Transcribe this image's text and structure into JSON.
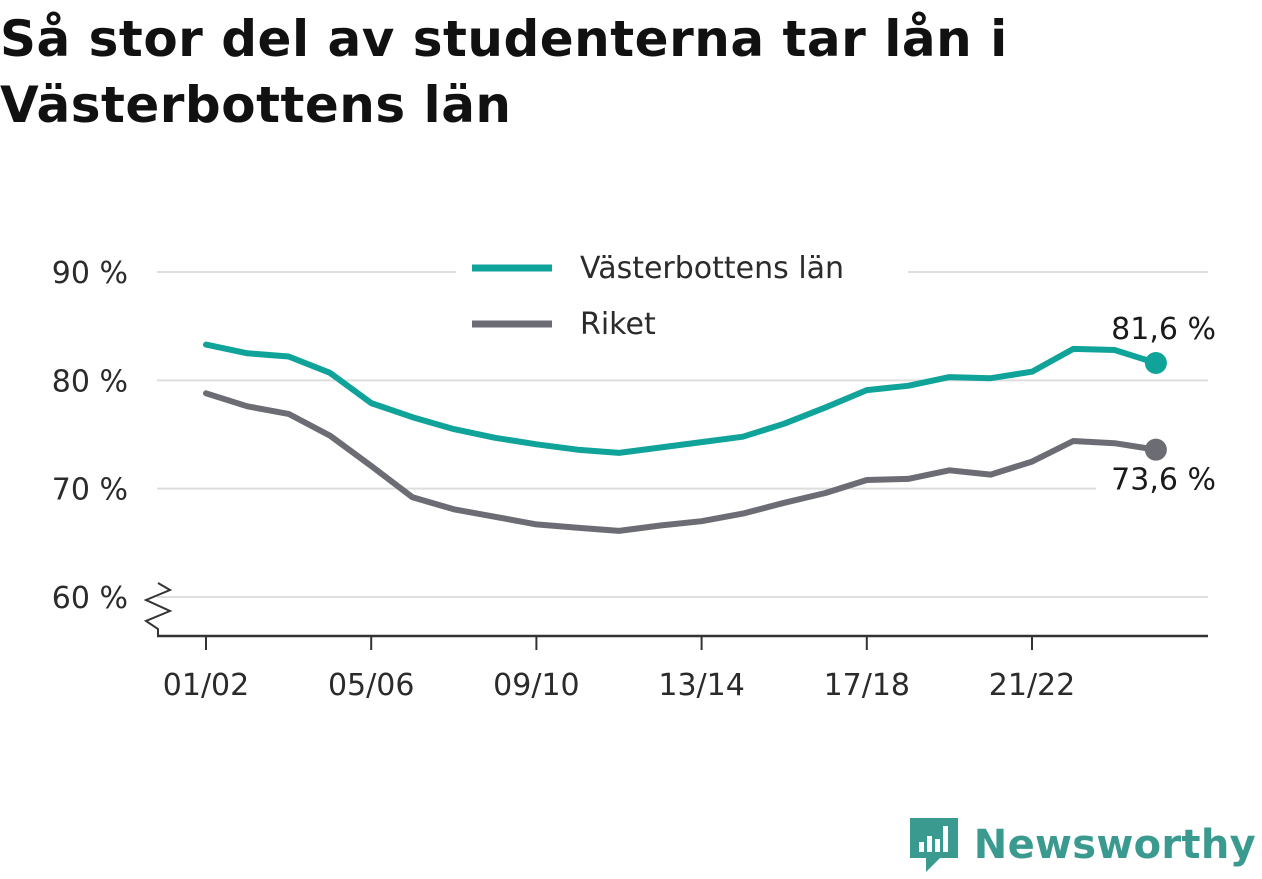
{
  "title": "Så stor del av studenterna tar lån i Västerbottens län",
  "brand": {
    "name": "Newsworthy",
    "icon": "newsworthy-logo-icon",
    "color": "#3a9a8f"
  },
  "chart_data": {
    "type": "line",
    "title": "Så stor del av studenterna tar lån i Västerbottens län",
    "xlabel": "",
    "ylabel": "",
    "ylim": [
      60,
      90
    ],
    "y_axis_break": true,
    "y_ticks": [
      {
        "value": 60,
        "label": "60 %"
      },
      {
        "value": 70,
        "label": "70 %"
      },
      {
        "value": 80,
        "label": "80 %"
      },
      {
        "value": 90,
        "label": "90 %"
      }
    ],
    "grid": true,
    "legend": "top-center",
    "x": [
      "01/02",
      "02/03",
      "03/04",
      "04/05",
      "05/06",
      "06/07",
      "07/08",
      "08/09",
      "09/10",
      "10/11",
      "11/12",
      "12/13",
      "13/14",
      "14/15",
      "15/16",
      "16/17",
      "17/18",
      "18/19",
      "19/20",
      "20/21",
      "21/22",
      "22/23",
      "23/24",
      "24/25"
    ],
    "x_tick_labels": [
      "01/02",
      "05/06",
      "09/10",
      "13/14",
      "17/18",
      "21/22"
    ],
    "series": [
      {
        "name": "Västerbottens län",
        "color": "#0fa39a",
        "values": [
          83.3,
          82.5,
          82.2,
          80.7,
          77.9,
          76.6,
          75.5,
          74.7,
          74.1,
          73.6,
          73.3,
          73.8,
          74.3,
          74.8,
          76.0,
          77.5,
          79.1,
          79.5,
          80.3,
          80.2,
          80.8,
          82.9,
          82.8,
          81.6
        ],
        "end_label": "81,6 %"
      },
      {
        "name": "Riket",
        "color": "#6c6c74",
        "values": [
          78.8,
          77.6,
          76.9,
          74.9,
          72.1,
          69.2,
          68.1,
          67.4,
          66.7,
          66.4,
          66.1,
          66.6,
          67.0,
          67.7,
          68.7,
          69.6,
          70.8,
          70.9,
          71.7,
          71.3,
          72.5,
          74.4,
          74.2,
          73.6
        ],
        "end_label": "73,6 %"
      }
    ]
  }
}
